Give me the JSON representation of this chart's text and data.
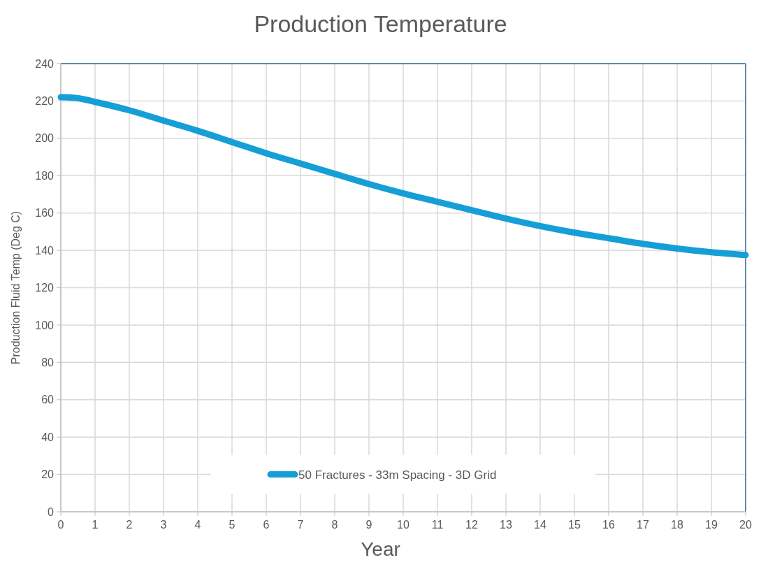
{
  "chart_data": {
    "type": "line",
    "title": "Production Temperature",
    "xlabel": "Year",
    "ylabel": "Production Fluid Temp (Deg C)",
    "x": [
      0,
      0.5,
      1,
      2,
      3,
      4,
      5,
      6,
      7,
      8,
      9,
      10,
      11,
      12,
      13,
      14,
      15,
      16,
      17,
      18,
      19,
      20
    ],
    "series": [
      {
        "name": "50 Fractures - 33m Spacing - 3D Grid",
        "color": "#159fd6",
        "values": [
          222,
          221.5,
          219.5,
          215,
          209.5,
          204,
          198,
          192,
          186.5,
          181,
          175.5,
          170.5,
          166,
          161.5,
          157,
          153,
          149.5,
          146.5,
          143.5,
          141,
          139,
          137.5
        ]
      }
    ],
    "xlim": [
      0,
      20
    ],
    "xticks": [
      0,
      1,
      2,
      3,
      4,
      5,
      6,
      7,
      8,
      9,
      10,
      11,
      12,
      13,
      14,
      15,
      16,
      17,
      18,
      19,
      20
    ],
    "ylim": [
      0,
      240
    ],
    "yticks": [
      0,
      20,
      40,
      60,
      80,
      100,
      120,
      140,
      160,
      180,
      200,
      220,
      240
    ],
    "grid": true,
    "legend": "bottom",
    "marker": "none",
    "line_style": "solid"
  }
}
